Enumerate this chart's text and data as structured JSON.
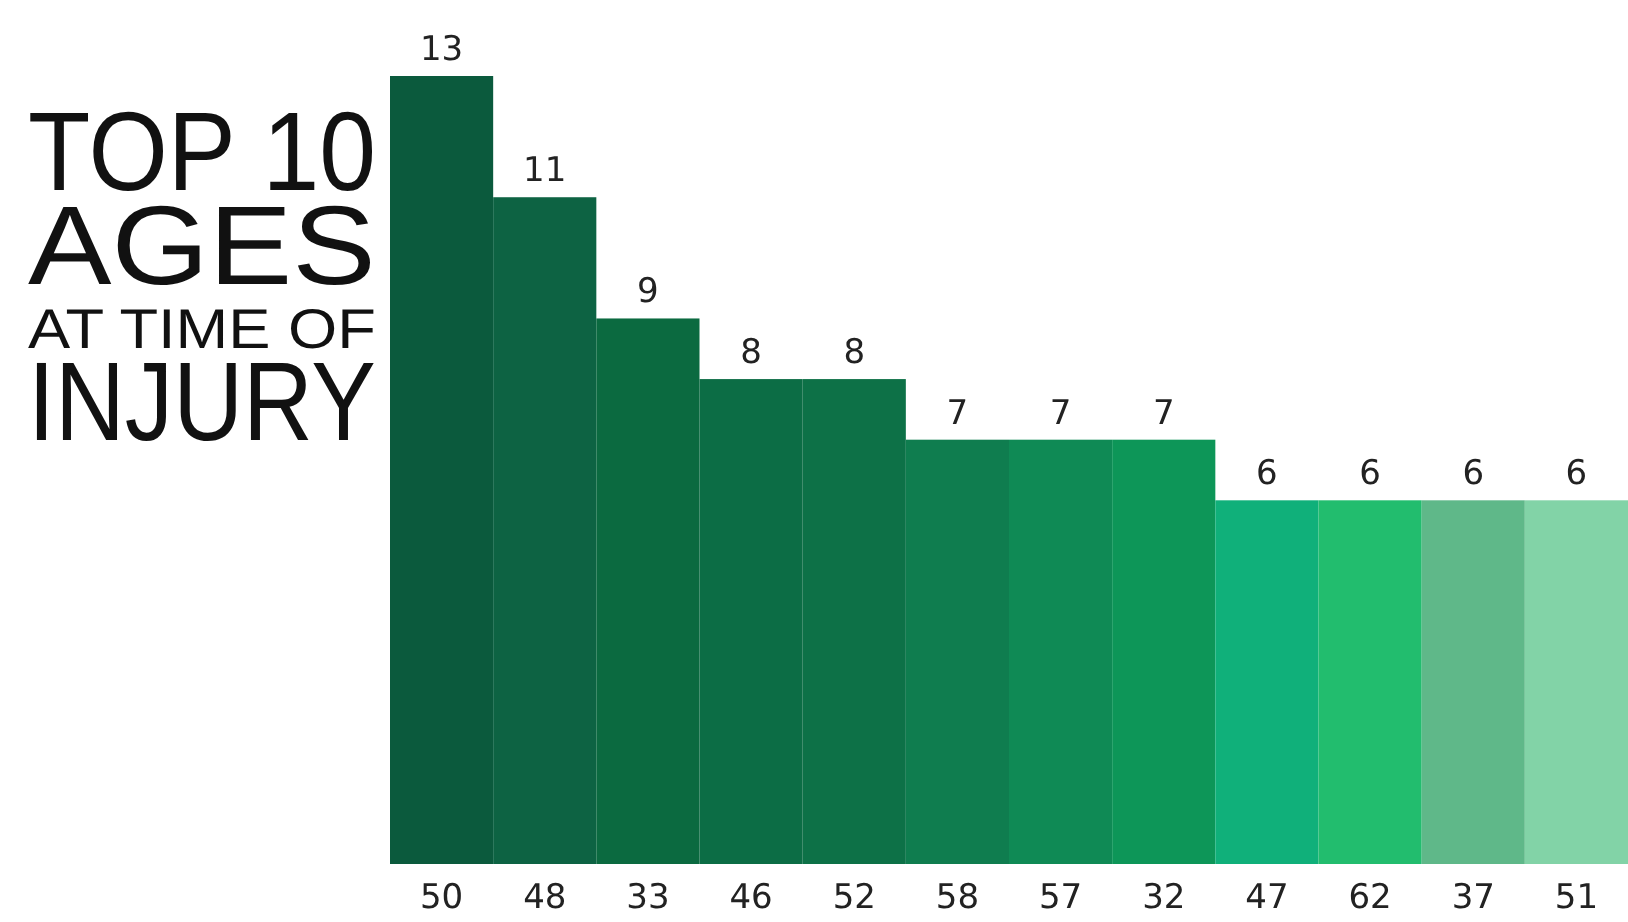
{
  "chart_data": {
    "type": "bar",
    "title": "TOP 10\nAGES\nAT TIME OF\nINJURY",
    "categories": [
      "50",
      "48",
      "33",
      "46",
      "52",
      "58",
      "57",
      "32",
      "47",
      "62",
      "37",
      "51"
    ],
    "values": [
      13,
      11,
      9,
      8,
      8,
      7,
      7,
      7,
      6,
      6,
      6,
      6
    ],
    "colors": [
      "#0b5a3d",
      "#0d6343",
      "#0b6a40",
      "#0c6d45",
      "#0d7147",
      "#0f7d4f",
      "#0f8a55",
      "#0d9658",
      "#10b07a",
      "#22bd6e",
      "#5fb889",
      "#82d3a7"
    ],
    "relative": false,
    "data_labels": true
  }
}
